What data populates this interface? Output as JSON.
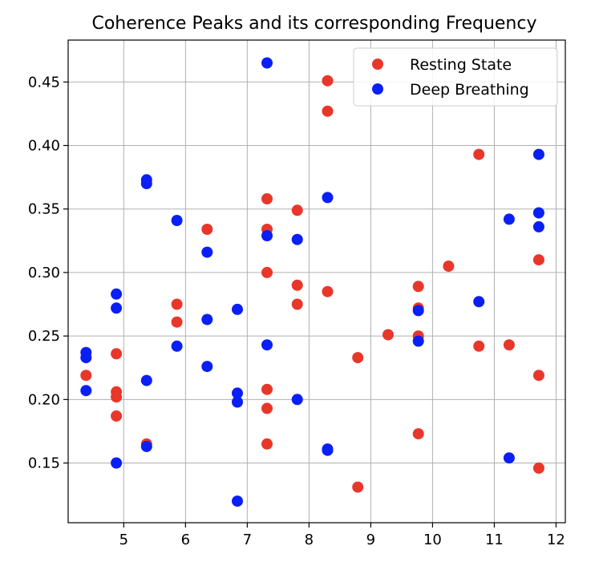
{
  "chart_data": {
    "type": "scatter",
    "title": "Coherence Peaks and its corresponding Frequency",
    "xlabel": "",
    "ylabel": "",
    "xlim": [
      4.1,
      12.15
    ],
    "ylim": [
      0.103,
      0.483
    ],
    "x_ticks": [
      5,
      6,
      7,
      8,
      9,
      10,
      11,
      12
    ],
    "y_ticks": [
      0.15,
      0.2,
      0.25,
      0.3,
      0.35,
      0.4,
      0.45
    ],
    "x_tick_labels": [
      "5",
      "6",
      "7",
      "8",
      "9",
      "10",
      "11",
      "12"
    ],
    "y_tick_labels": [
      "0.15",
      "0.20",
      "0.25",
      "0.30",
      "0.35",
      "0.40",
      "0.45"
    ],
    "grid": true,
    "legend_position": "top-right",
    "series": [
      {
        "name": "Resting State",
        "color": "#e8372a",
        "points": [
          [
            4.39,
            0.219
          ],
          [
            4.88,
            0.236
          ],
          [
            4.88,
            0.206
          ],
          [
            4.88,
            0.202
          ],
          [
            4.88,
            0.187
          ],
          [
            5.37,
            0.165
          ],
          [
            5.86,
            0.275
          ],
          [
            5.86,
            0.261
          ],
          [
            6.35,
            0.334
          ],
          [
            7.32,
            0.358
          ],
          [
            7.32,
            0.334
          ],
          [
            7.32,
            0.3
          ],
          [
            7.32,
            0.208
          ],
          [
            7.32,
            0.193
          ],
          [
            7.32,
            0.165
          ],
          [
            7.81,
            0.349
          ],
          [
            7.81,
            0.29
          ],
          [
            7.81,
            0.275
          ],
          [
            8.3,
            0.451
          ],
          [
            8.3,
            0.427
          ],
          [
            8.3,
            0.285
          ],
          [
            8.79,
            0.233
          ],
          [
            8.79,
            0.131
          ],
          [
            9.28,
            0.251
          ],
          [
            9.77,
            0.289
          ],
          [
            9.77,
            0.272
          ],
          [
            9.77,
            0.25
          ],
          [
            9.77,
            0.173
          ],
          [
            10.26,
            0.305
          ],
          [
            10.75,
            0.393
          ],
          [
            10.75,
            0.242
          ],
          [
            11.24,
            0.243
          ],
          [
            11.72,
            0.31
          ],
          [
            11.72,
            0.219
          ],
          [
            11.72,
            0.146
          ]
        ]
      },
      {
        "name": "Deep Breathing",
        "color": "#0a1ff5",
        "points": [
          [
            4.39,
            0.237
          ],
          [
            4.39,
            0.233
          ],
          [
            4.39,
            0.207
          ],
          [
            4.88,
            0.283
          ],
          [
            4.88,
            0.272
          ],
          [
            4.88,
            0.15
          ],
          [
            5.37,
            0.373
          ],
          [
            5.37,
            0.37
          ],
          [
            5.37,
            0.215
          ],
          [
            5.37,
            0.163
          ],
          [
            5.86,
            0.341
          ],
          [
            5.86,
            0.242
          ],
          [
            6.35,
            0.316
          ],
          [
            6.35,
            0.263
          ],
          [
            6.35,
            0.226
          ],
          [
            6.84,
            0.271
          ],
          [
            6.84,
            0.205
          ],
          [
            6.84,
            0.198
          ],
          [
            6.84,
            0.12
          ],
          [
            7.32,
            0.465
          ],
          [
            7.32,
            0.329
          ],
          [
            7.32,
            0.243
          ],
          [
            7.81,
            0.326
          ],
          [
            7.81,
            0.2
          ],
          [
            8.3,
            0.359
          ],
          [
            8.3,
            0.161
          ],
          [
            8.3,
            0.16
          ],
          [
            9.77,
            0.27
          ],
          [
            9.77,
            0.246
          ],
          [
            10.75,
            0.277
          ],
          [
            11.24,
            0.342
          ],
          [
            11.24,
            0.154
          ],
          [
            11.72,
            0.393
          ],
          [
            11.72,
            0.347
          ],
          [
            11.72,
            0.336
          ]
        ]
      }
    ]
  }
}
